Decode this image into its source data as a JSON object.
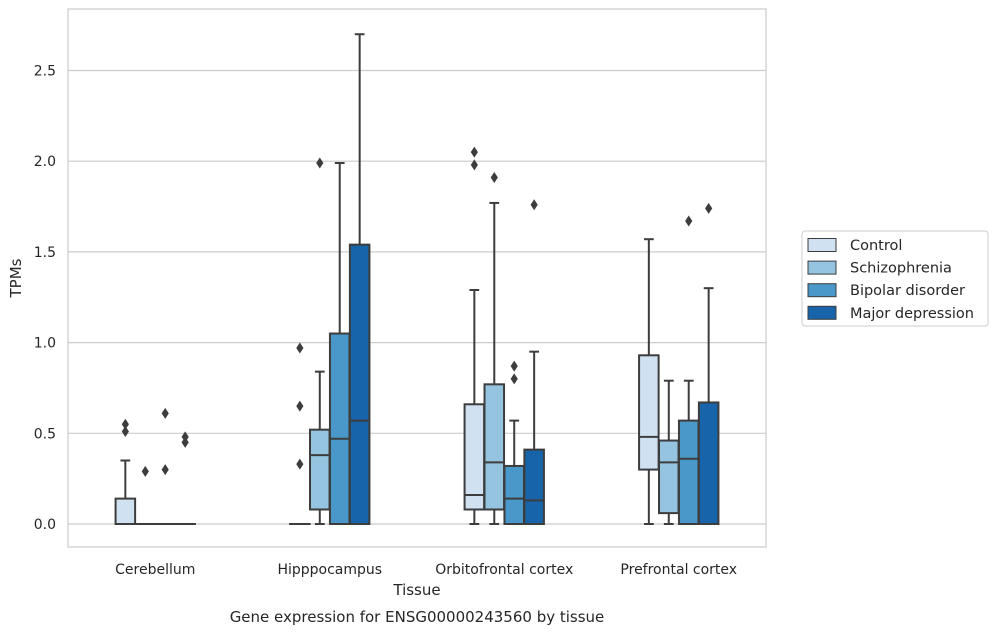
{
  "chart_data": {
    "type": "box",
    "title": "",
    "caption": "Gene expression for ENSG00000243560 by tissue",
    "xlabel": "Tissue",
    "ylabel": "TPMs",
    "ylim": [
      -0.13,
      2.85
    ],
    "yticks": [
      "0.0",
      "0.5",
      "1.0",
      "1.5",
      "2.0",
      "2.5"
    ],
    "ytick_values": [
      0,
      0.5,
      1.0,
      1.5,
      2.0,
      2.5
    ],
    "grid": "horizontal",
    "legend_position": "right",
    "categories": [
      "Cerebellum",
      "Hipppocampus",
      "Orbitofrontal cortex",
      "Prefrontal cortex"
    ],
    "series": [
      {
        "name": "Control",
        "color": "#d0e1f2",
        "boxes": [
          {
            "whislo": 0,
            "q1": 0,
            "med": 0,
            "q3": 0.14,
            "whishi": 0.35,
            "fliers": [
              0.51,
              0.55
            ]
          },
          {
            "whislo": 0,
            "q1": 0,
            "med": 0,
            "q3": 0,
            "whishi": 0,
            "fliers": [
              0.33,
              0.65,
              0.97
            ]
          },
          {
            "whislo": 0,
            "q1": 0.08,
            "med": 0.16,
            "q3": 0.66,
            "whishi": 1.29,
            "fliers": [
              1.98,
              2.05
            ]
          },
          {
            "whislo": 0,
            "q1": 0.3,
            "med": 0.48,
            "q3": 0.93,
            "whishi": 1.57,
            "fliers": []
          }
        ]
      },
      {
        "name": "Schizophrenia",
        "color": "#94c4df",
        "boxes": [
          {
            "whislo": 0,
            "q1": 0,
            "med": 0,
            "q3": 0,
            "whishi": 0,
            "fliers": [
              0.29
            ]
          },
          {
            "whislo": 0,
            "q1": 0.08,
            "med": 0.38,
            "q3": 0.52,
            "whishi": 0.84,
            "fliers": [
              1.99
            ]
          },
          {
            "whislo": 0,
            "q1": 0.08,
            "med": 0.34,
            "q3": 0.77,
            "whishi": 1.77,
            "fliers": [
              1.91
            ]
          },
          {
            "whislo": 0,
            "q1": 0.06,
            "med": 0.34,
            "q3": 0.46,
            "whishi": 0.79,
            "fliers": []
          }
        ]
      },
      {
        "name": "Bipolar disorder",
        "color": "#4a98c9",
        "boxes": [
          {
            "whislo": 0,
            "q1": 0,
            "med": 0,
            "q3": 0,
            "whishi": 0,
            "fliers": [
              0.3,
              0.61
            ]
          },
          {
            "whislo": 0,
            "q1": 0,
            "med": 0.47,
            "q3": 1.05,
            "whishi": 1.99,
            "fliers": []
          },
          {
            "whislo": 0,
            "q1": 0,
            "med": 0.14,
            "q3": 0.32,
            "whishi": 0.57,
            "fliers": [
              0.8,
              0.87
            ]
          },
          {
            "whislo": 0,
            "q1": 0,
            "med": 0.36,
            "q3": 0.57,
            "whishi": 0.79,
            "fliers": [
              1.67
            ]
          }
        ]
      },
      {
        "name": "Major depression",
        "color": "#1764ab",
        "boxes": [
          {
            "whislo": 0,
            "q1": 0,
            "med": 0,
            "q3": 0,
            "whishi": 0,
            "fliers": [
              0.45,
              0.48
            ]
          },
          {
            "whislo": 0,
            "q1": 0,
            "med": 0.57,
            "q3": 1.54,
            "whishi": 2.7,
            "fliers": []
          },
          {
            "whislo": 0,
            "q1": 0,
            "med": 0.13,
            "q3": 0.41,
            "whishi": 0.95,
            "fliers": [
              1.76
            ]
          },
          {
            "whislo": 0,
            "q1": 0,
            "med": 0,
            "q3": 0.67,
            "whishi": 1.3,
            "fliers": [
              1.74
            ]
          }
        ]
      }
    ]
  }
}
